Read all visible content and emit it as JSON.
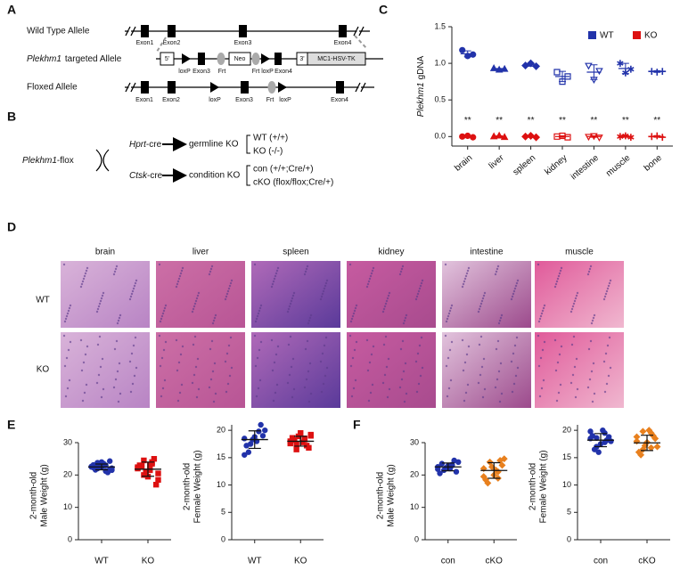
{
  "figure": {
    "panel_labels": [
      "A",
      "B",
      "C",
      "D",
      "E",
      "F"
    ],
    "A": {
      "wild_type": "Wild Type Allele",
      "targeted_gene": "Plekhm1",
      "targeted_rest": "targeted Allele",
      "floxed": "Floxed Allele",
      "wt_labels": [
        "Exon1",
        "Exon2",
        "Exon3",
        "Exon4"
      ],
      "targeted_boxes": [
        "5'",
        "Neo",
        "3'",
        "MC1-HSV-TK"
      ],
      "targeted_labels": [
        "loxP",
        "Exon3",
        "Frt",
        "Frt",
        "loxP",
        "Exon4"
      ],
      "floxed_labels": [
        "Exon1",
        "Exon2",
        "loxP",
        "Exon3",
        "Frt",
        "loxP",
        "Exon4"
      ]
    },
    "B": {
      "flox_gene": "Plekhm1",
      "flox_rest": "-flox",
      "cre1_gene": "Hprt",
      "cre1_rest": "-cre",
      "ko1": "germline KO",
      "geno1": [
        "WT (+/+)",
        "KO  (-/-)"
      ],
      "cre2_gene": "Ctsk",
      "cre2_rest": "-cre",
      "ko2": "condition KO",
      "geno2": [
        "con (+/+;Cre/+)",
        "cKO (flox/flox;Cre/+)"
      ]
    },
    "D": {
      "tissues": [
        "brain",
        "liver",
        "spleen",
        "kidney",
        "intestine",
        "muscle"
      ],
      "rows": [
        "WT",
        "KO"
      ]
    }
  },
  "chart_data": [
    {
      "type": "dot",
      "ylabel_gene": "Plekhm1",
      "ylabel": "gDNA",
      "categories": [
        "brain",
        "liver",
        "spleen",
        "kidney",
        "intestine",
        "muscle",
        "bone"
      ],
      "markers": [
        "circle",
        "triangle",
        "diamond",
        "square-open",
        "triangle-down-open",
        "star",
        "plus"
      ],
      "ylim": [
        -0.13,
        1.5
      ],
      "yticks": [
        {
          "value": 0,
          "label": "0.0"
        },
        {
          "value": 0.5,
          "label": "0.5"
        },
        {
          "value": 1,
          "label": "1.0"
        },
        {
          "value": 1.5,
          "label": "1.5"
        }
      ],
      "legend": "upper right",
      "annotations": [
        "**",
        "**",
        "**",
        "**",
        "**",
        "**",
        "**"
      ],
      "series": [
        {
          "name": "WT",
          "color": "#2233aa",
          "values": [
            [
              1.18,
              1.1,
              1.12
            ],
            [
              0.93,
              0.91,
              0.92
            ],
            [
              0.97,
              1.0,
              0.96
            ],
            [
              0.88,
              0.75,
              0.82
            ],
            [
              0.97,
              0.78,
              0.9
            ],
            [
              1.0,
              0.87,
              0.92
            ],
            [
              0.89,
              0.88,
              0.89
            ]
          ],
          "means": [
            1.13,
            0.92,
            0.98,
            0.82,
            0.88,
            0.93,
            0.89
          ],
          "sd": [
            0.04,
            0.01,
            0.02,
            0.07,
            0.1,
            0.07,
            0.01
          ]
        },
        {
          "name": "KO",
          "color": "#dd1111",
          "values": [
            [
              0,
              0.01,
              -0.01
            ],
            [
              0,
              0.01,
              -0.01
            ],
            [
              0,
              0.01,
              -0.01
            ],
            [
              0,
              0.01,
              -0.01
            ],
            [
              0,
              0.01,
              -0.01
            ],
            [
              0,
              0.01,
              -0.01
            ],
            [
              0,
              0.01,
              -0.01
            ]
          ],
          "means": [
            0,
            0,
            0,
            0,
            0,
            0,
            0
          ],
          "sd": [
            0.01,
            0.01,
            0.01,
            0.01,
            0.01,
            0.01,
            0.01
          ]
        }
      ]
    },
    {
      "type": "strip",
      "ylabel": [
        "2-month-old",
        "Male Weight (g)"
      ],
      "ylim": [
        0,
        30
      ],
      "yticks": [
        0,
        10,
        20,
        30
      ],
      "series": [
        {
          "name": "WT",
          "color": "#2233aa",
          "marker": "circle",
          "values": [
            22.5,
            23.0,
            22.0,
            21.5,
            23.5,
            22.8,
            21.8,
            24.0,
            22.3,
            20.8,
            23.2,
            22.6,
            21.2,
            23.8,
            22.1,
            22.9,
            21.6,
            24.3,
            22.4,
            23.1
          ],
          "mean": 22.5,
          "sd": 0.9
        },
        {
          "name": "KO",
          "color": "#dd1111",
          "marker": "square",
          "values": [
            22.0,
            23.5,
            24.5,
            20.5,
            21.5,
            22.8,
            17.0,
            19.5,
            23.0,
            25.0,
            21.0,
            22.4,
            24.0,
            20.0,
            18.5,
            23.2
          ],
          "mean": 21.8,
          "sd": 2.2
        }
      ]
    },
    {
      "type": "strip",
      "ylabel": [
        "2-month-old",
        "Female Weight (g)"
      ],
      "ylim": [
        0,
        21
      ],
      "yticks": [
        0,
        5,
        10,
        15,
        20
      ],
      "series": [
        {
          "name": "WT",
          "color": "#2233aa",
          "marker": "circle",
          "values": [
            18.5,
            19.8,
            17.5,
            20.0,
            18.0,
            16.0,
            19.0,
            18.8,
            17.2,
            21.0,
            18.3,
            15.5
          ],
          "mean": 18.3,
          "sd": 1.6
        },
        {
          "name": "KO",
          "color": "#dd1111",
          "marker": "square",
          "values": [
            18.0,
            18.5,
            17.5,
            19.0,
            17.8,
            18.2,
            16.8,
            19.5,
            18.6,
            17.2,
            18.9,
            17.6,
            18.3,
            16.5,
            19.2
          ],
          "mean": 18.0,
          "sd": 0.9
        }
      ]
    },
    {
      "type": "strip",
      "ylabel": [
        "2-month-old",
        "Male Weight (g)"
      ],
      "ylim": [
        0,
        30
      ],
      "yticks": [
        0,
        10,
        20,
        30
      ],
      "series": [
        {
          "name": "con",
          "color": "#2233aa",
          "marker": "circle",
          "values": [
            22.5,
            23.0,
            21.5,
            24.0,
            22.0,
            23.5,
            21.0,
            22.8,
            20.5,
            24.5,
            22.2,
            21.8,
            23.2
          ],
          "mean": 22.5,
          "sd": 1.2
        },
        {
          "name": "cKO",
          "color": "#e8801e",
          "marker": "diamond",
          "values": [
            22.0,
            19.0,
            24.0,
            25.0,
            21.5,
            17.5,
            23.0,
            20.0,
            18.5,
            24.5,
            22.5,
            19.5,
            21.0
          ],
          "mean": 21.4,
          "sd": 2.4
        }
      ]
    },
    {
      "type": "strip",
      "ylabel": [
        "2-month-old",
        "Female Weight (g)"
      ],
      "ylim": [
        0,
        21
      ],
      "yticks": [
        0,
        5,
        10,
        15,
        20
      ],
      "series": [
        {
          "name": "con",
          "color": "#2233aa",
          "marker": "circle",
          "values": [
            18.5,
            19.5,
            17.0,
            18.0,
            20.0,
            16.5,
            18.8,
            17.5,
            19.0,
            18.2,
            16.0,
            19.8,
            17.8,
            18.6
          ],
          "mean": 18.2,
          "sd": 1.2
        },
        {
          "name": "cKO",
          "color": "#e8801e",
          "marker": "diamond",
          "values": [
            18.0,
            19.5,
            16.5,
            17.0,
            20.0,
            15.5,
            18.5,
            17.8,
            16.0,
            19.0,
            17.2,
            18.8,
            16.8,
            19.8
          ],
          "mean": 17.7,
          "sd": 1.4
        }
      ]
    }
  ]
}
